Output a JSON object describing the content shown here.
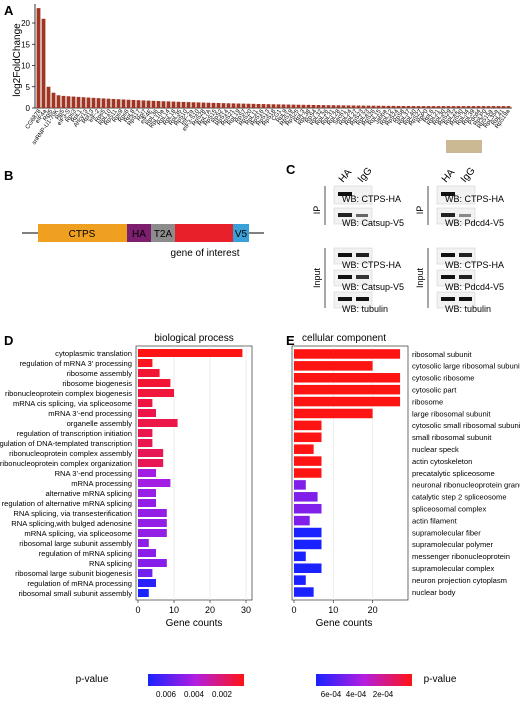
{
  "panels": {
    "a": "A",
    "b": "B",
    "c": "C",
    "d": "D",
    "e": "E"
  },
  "panel_a": {
    "ylabel": "log2FoldChange",
    "yticks": [
      "0",
      "5",
      "10",
      "15",
      "20"
    ],
    "bar_color": "#a03524",
    "gene_labels": [
      "CG6878",
      "eIF4a",
      "Rpl5",
      "snRNP-U1-70K",
      "Rp5",
      "eIF3-S",
      "Rps3",
      "RpL1",
      "Ahcy13",
      "Rpl13",
      "eIF-2",
      "Rps5",
      "RpL10",
      "RpS11",
      "Rps9",
      "Rps6",
      "RpL8",
      "RpS17",
      "Rpl7",
      "eIF4E",
      "RpL36",
      "RpL10a",
      "RpL14",
      "RpL18",
      "RpL35",
      "RpS10",
      "eIF-2a",
      "eIF3-S10",
      "RpS28",
      "RpL7A",
      "RpS15",
      "RpS2",
      "RpS14",
      "RpS21",
      "RpL19",
      "RpS7",
      "RpS20",
      "RpL11",
      "RpS16",
      "RpS13",
      "RpS18",
      "CG1",
      "RpL9",
      "RpS19",
      "RpS25",
      "RpL3",
      "RpL38",
      "RpS4",
      "RpL32",
      "RpL26",
      "RpL31",
      "RpL28",
      "Sec61",
      "RpL24",
      "RpL27",
      "RpS23",
      "RpL23",
      "RpS26",
      "RpL15",
      "Jabba",
      "RpL12",
      "RpS24",
      "RpS8",
      "RpL37",
      "RpL40",
      "RpS27",
      "RpP0",
      "RpL6",
      "RpL21",
      "RpL30",
      "RpS29",
      "RpL22",
      "RpS30",
      "RpL34",
      "RpL39",
      "Pdcd4",
      "RpLP0",
      "RpS15a",
      "RpL35a",
      "RpL41",
      "RpS19a"
    ]
  },
  "panel_b": {
    "segments": [
      {
        "label": "CTPS",
        "color": "#f0a020"
      },
      {
        "label": "HA",
        "color": "#7b1f6e"
      },
      {
        "label": "T2A",
        "color": "#8c8c8c"
      },
      {
        "label": "",
        "color": "#e8202a"
      },
      {
        "label": "V5",
        "color": "#3aa0d8"
      }
    ],
    "caption": "gene of interest"
  },
  "panel_c": {
    "lane_labels": [
      "HA",
      "IgG"
    ],
    "ip_label": "IP",
    "input_label": "Input",
    "left": {
      "ip": [
        "WB: CTPS-HA",
        "WB: Catsup-V5"
      ],
      "input": [
        "WB: CTPS-HA",
        "WB: Catsup-V5",
        "WB: tubulin"
      ]
    },
    "right": {
      "ip": [
        "WB: CTPS-HA",
        "WB: Pdcd4-V5"
      ],
      "input": [
        "WB: CTPS-HA",
        "WB: Pdcd4-V5",
        "WB: tubulin"
      ]
    }
  },
  "chart_data": [
    {
      "type": "bar",
      "orientation": "horizontal",
      "title": "biological process",
      "xlabel": "Gene counts",
      "xlim": [
        0,
        30
      ],
      "xticks": [
        0,
        10,
        20,
        30
      ],
      "categories": [
        "cytoplasmic translation",
        "regulation of mRNA 3' processing",
        "ribosome assembly",
        "ribosome biogenesis",
        "ribonucleoprotein complex biogenesis",
        "mRNA cis splicing, via spliceosome",
        "mRNA 3'-end processing",
        "organelle assembly",
        "regulation of transcription initiation",
        "regulation of DNA-templated transcription",
        "ribonucleoprotein complex assembly",
        "ribonucleoprotein complex organization",
        "RNA 3'-end processing",
        "mRNA processing",
        "alternative mRNA splicing",
        "regulation of alternative mRNA splicing",
        "RNA splicing, via transesterification",
        "RNA splicing,with bulged adenosine",
        "mRNA splicing, via spliceosome",
        "ribosomal large subunit assembly",
        "regulation of mRNA splicing",
        "RNA splicing",
        "ribosomal large subunit biogenesis",
        "regulation of mRNA processing",
        "ribosomal small subunit assembly"
      ],
      "values": [
        29,
        4,
        6,
        9,
        10,
        4,
        5,
        11,
        4,
        4,
        7,
        7,
        5,
        9,
        5,
        5,
        8,
        8,
        8,
        3,
        5,
        8,
        4,
        5,
        3
      ],
      "pvalue": [
        0.0001,
        0.0003,
        0.0006,
        0.0006,
        0.0007,
        0.0008,
        0.0009,
        0.0009,
        0.001,
        0.001,
        0.0011,
        0.0011,
        0.0036,
        0.0036,
        0.0038,
        0.0039,
        0.0039,
        0.0039,
        0.0039,
        0.004,
        0.0041,
        0.0042,
        0.0046,
        0.0061,
        0.0064
      ],
      "legend": {
        "title": "p-value",
        "ticks": [
          "0.006",
          "0.004",
          "0.002"
        ]
      }
    },
    {
      "type": "bar",
      "orientation": "horizontal",
      "title": "cellular component",
      "xlabel": "Gene counts",
      "xlim": [
        0,
        28
      ],
      "xticks": [
        0,
        10,
        20
      ],
      "categories": [
        "ribosomal subunit",
        "cytosolic large ribosomal subunit",
        "cytosolic ribosome",
        "cytosolic part",
        "ribosome",
        "large ribosomal subunit",
        "cytosolic small ribosomal subunit",
        "small ribosomal subunit",
        "nuclear speck",
        "actin cytoskeleton",
        "precatalytic spliceosome",
        "neuronal ribonucleoprotein granule",
        "catalytic step 2 spliceosome",
        "spliceosomal complex",
        "actin filament",
        "supramolecular fiber",
        "supramolecular polymer",
        "messenger ribonucleoprotein",
        "supramolecular complex",
        "neuron projection cytoplasm",
        "nuclear body"
      ],
      "values": [
        27,
        20,
        27,
        27,
        27,
        20,
        7,
        7,
        5,
        7,
        7,
        3,
        6,
        7,
        4,
        7,
        7,
        3,
        7,
        3,
        5
      ],
      "pvalue": [
        0.0,
        0.0,
        0.0,
        0.0,
        0.0,
        0.0,
        0.0,
        0.0,
        0.0,
        0.0,
        0.0,
        0.0004,
        0.0004,
        0.0004,
        0.0004,
        0.0006,
        0.0006,
        0.0006,
        0.0006,
        0.0006,
        0.0006
      ],
      "legend": {
        "title": "p-value",
        "ticks": [
          "6e-04",
          "4e-04",
          "2e-04"
        ]
      }
    }
  ]
}
